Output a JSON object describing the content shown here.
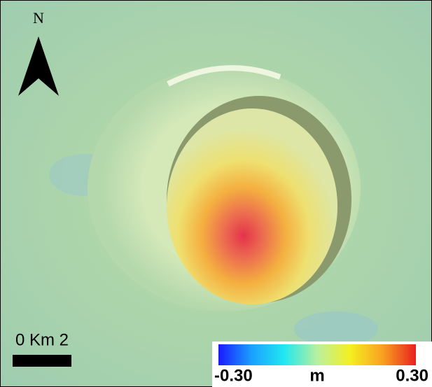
{
  "north_label": "N",
  "scale_bar": {
    "label": "0 Km 2"
  },
  "colorbar": {
    "unit": "m",
    "ticks": [
      {
        "value": -0.3,
        "label": "-0.30"
      },
      {
        "value": 0.3,
        "label": "0.30"
      }
    ],
    "colors": [
      "#1a1aff",
      "#1aa0ff",
      "#20e8f0",
      "#b8f0a0",
      "#f4f020",
      "#f8a020",
      "#e82020"
    ]
  }
}
